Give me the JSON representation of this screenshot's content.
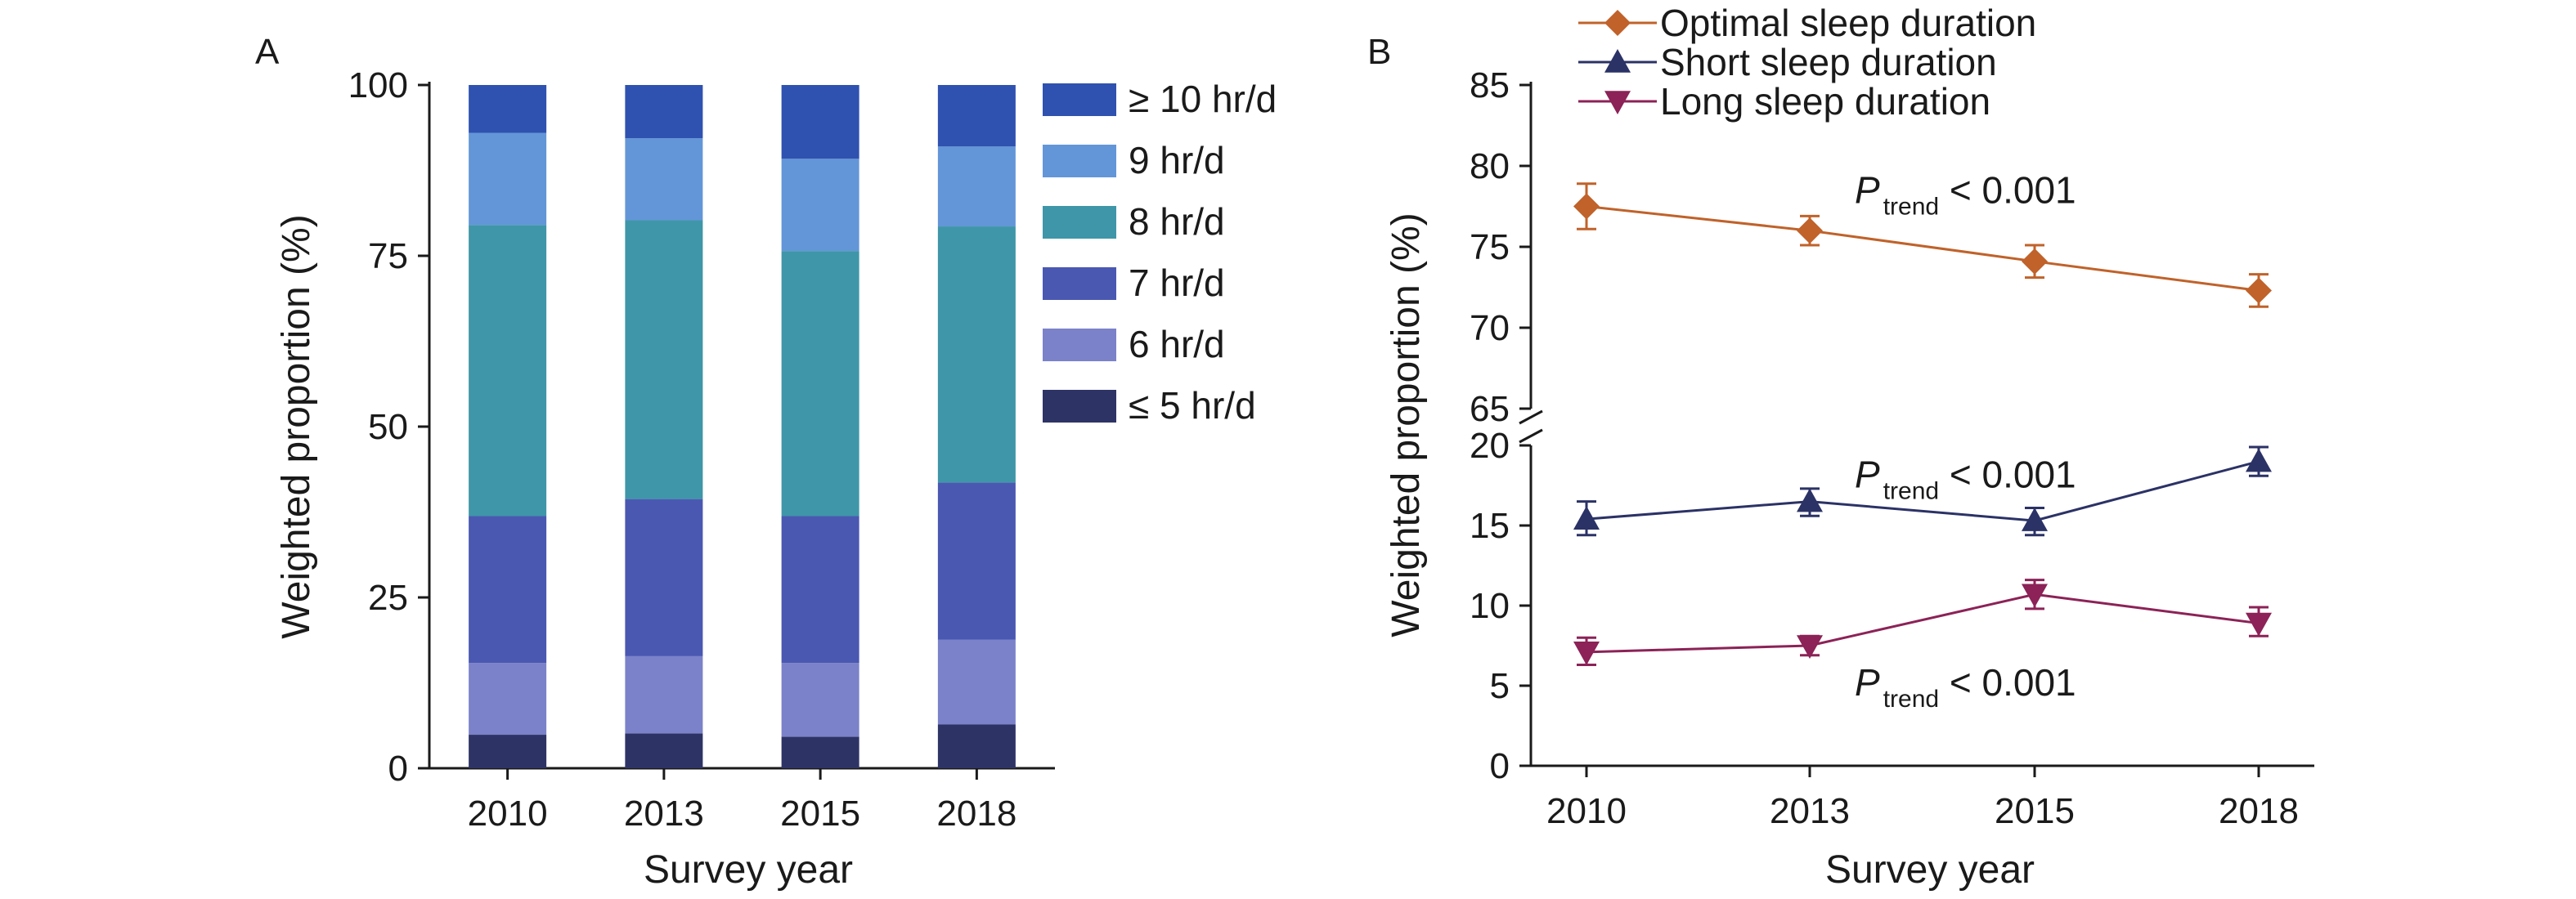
{
  "chart_data": [
    {
      "panel": "A",
      "type": "bar",
      "stacked": true,
      "categories": [
        "2010",
        "2013",
        "2015",
        "2018"
      ],
      "series": [
        {
          "name": "≤ 5 hr/d",
          "color": "#2e3366",
          "values": [
            4.9,
            5.1,
            4.6,
            6.4
          ]
        },
        {
          "name": "6 hr/d",
          "color": "#7b82c9",
          "values": [
            10.5,
            11.3,
            10.8,
            12.4
          ]
        },
        {
          "name": "7 hr/d",
          "color": "#4a58b2",
          "values": [
            21.5,
            23.0,
            21.5,
            23.0
          ]
        },
        {
          "name": "8 hr/d",
          "color": "#3f96a8",
          "values": [
            42.6,
            40.8,
            38.8,
            37.5
          ]
        },
        {
          "name": "9 hr/d",
          "color": "#6396d8",
          "values": [
            13.5,
            12.0,
            13.5,
            11.7
          ]
        },
        {
          "name": "≥ 10 hr/d",
          "color": "#2f52b0",
          "values": [
            7.0,
            7.8,
            10.8,
            9.0
          ]
        }
      ],
      "ylabel": "Weighted proportion (%)",
      "xlabel": "Survey year",
      "ylim": [
        0,
        100
      ],
      "yticks": [
        "0",
        "25",
        "50",
        "75",
        "100"
      ],
      "legend_position": "right"
    },
    {
      "panel": "B",
      "type": "line",
      "x": [
        "2010",
        "2013",
        "2015",
        "2018"
      ],
      "y_axis_break": [
        20,
        65
      ],
      "ylim": [
        0,
        85
      ],
      "yticks": [
        "0",
        "5",
        "10",
        "15",
        "20",
        "65",
        "70",
        "75",
        "80",
        "85"
      ],
      "ylabel": "Weighted proportion (%)",
      "xlabel": "Survey year",
      "legend_position": "top",
      "series": [
        {
          "name": "Optimal sleep duration",
          "color": "#c0622a",
          "marker": "diamond",
          "values": [
            77.5,
            76.0,
            74.1,
            72.3
          ],
          "ci_low": [
            76.1,
            75.1,
            73.1,
            71.3
          ],
          "ci_high": [
            78.9,
            76.9,
            75.1,
            73.3
          ]
        },
        {
          "name": "Short sleep duration",
          "color": "#2b3266",
          "marker": "triangle-up",
          "values": [
            15.4,
            16.5,
            15.3,
            19.0
          ],
          "ci_low": [
            14.4,
            15.6,
            14.4,
            18.1
          ],
          "ci_high": [
            16.5,
            17.3,
            16.1,
            19.9
          ]
        },
        {
          "name": "Long sleep duration",
          "color": "#8c2257",
          "marker": "triangle-down",
          "values": [
            7.1,
            7.5,
            10.7,
            8.9
          ],
          "ci_low": [
            6.3,
            6.9,
            9.8,
            8.1
          ],
          "ci_high": [
            8.0,
            8.1,
            11.6,
            9.9
          ]
        }
      ],
      "annotations": [
        {
          "prefix": "P",
          "subscript": "trend",
          "suffix": " < 0.001",
          "x": "2013",
          "y": 78.5
        },
        {
          "prefix": "P",
          "subscript": "trend",
          "suffix": " < 0.001",
          "x": "2013",
          "y": 18.2
        },
        {
          "prefix": "P",
          "subscript": "trend",
          "suffix": " < 0.001",
          "x": "2013",
          "y": 5.2
        }
      ]
    }
  ]
}
